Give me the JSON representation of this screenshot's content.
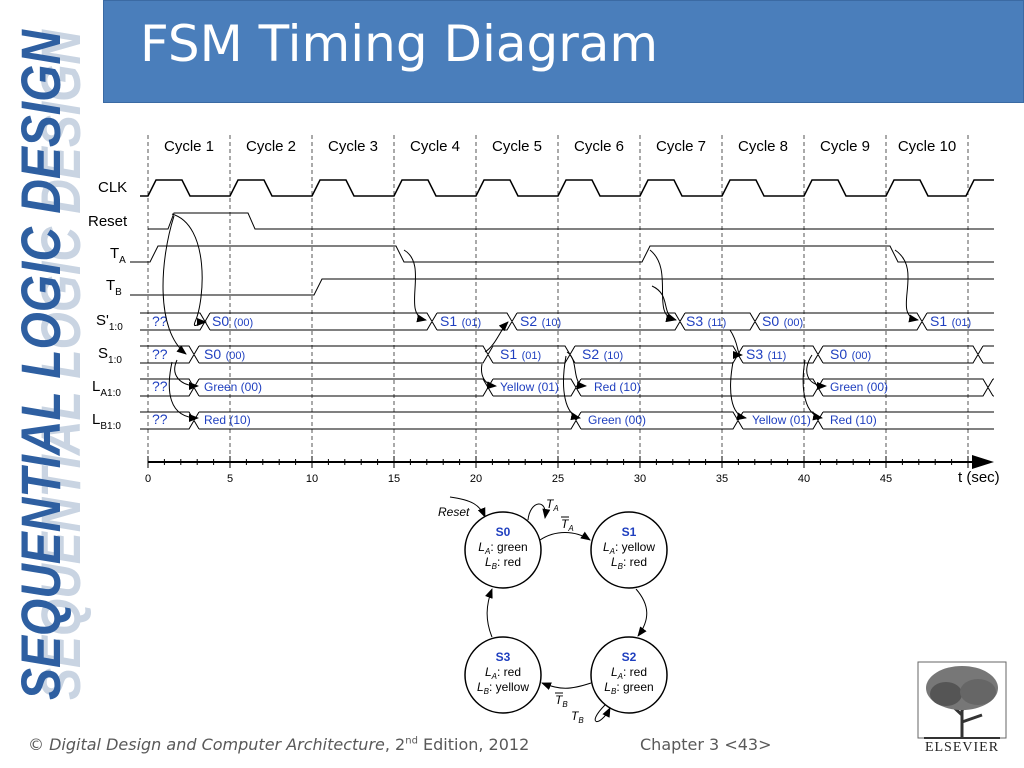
{
  "slide": {
    "title": "FSM Timing Diagram",
    "side_title": "SEQUENTIAL LOGIC DESIGN",
    "footer": {
      "copyright": "©",
      "book": "Digital Design and Computer Architecture",
      "edition_pre": ", 2",
      "edition_sup": "nd",
      "edition_post": " Edition, 2012",
      "chapter": "Chapter 3 <43>"
    },
    "publisher": "ELSEVIER",
    "colors": {
      "title_bg": "#4a7ebb",
      "side_text": "#2e5fa1",
      "blue_label": "#1f3fbf"
    }
  },
  "timing": {
    "cycles": [
      "Cycle 1",
      "Cycle 2",
      "Cycle 3",
      "Cycle 4",
      "Cycle 5",
      "Cycle 6",
      "Cycle 7",
      "Cycle 8",
      "Cycle 9",
      "Cycle 10"
    ],
    "time_ticks": [
      "0",
      "5",
      "10",
      "15",
      "20",
      "25",
      "30",
      "35",
      "40",
      "45"
    ],
    "time_axis_label": "t (sec)",
    "signals": {
      "clk": "CLK",
      "reset": "Reset",
      "ta": "T",
      "ta_sub": "A",
      "tb": "T",
      "tb_sub": "B",
      "snext": "S'",
      "snext_sub": "1:0",
      "s": "S",
      "s_sub": "1:0",
      "la": "L",
      "la_sub": "A1:0",
      "lb": "L",
      "lb_sub": "B1:0"
    },
    "bus_values": {
      "snext": [
        {
          "state": "??",
          "code": ""
        },
        {
          "state": "S0",
          "code": "(00)"
        },
        {
          "state": "S1",
          "code": "(01)"
        },
        {
          "state": "S2",
          "code": "(10)"
        },
        {
          "state": "S3",
          "code": "(11)"
        },
        {
          "state": "S0",
          "code": "(00)"
        },
        {
          "state": "S1",
          "code": "(01)"
        }
      ],
      "s": [
        {
          "state": "??",
          "code": ""
        },
        {
          "state": "S0",
          "code": "(00)"
        },
        {
          "state": "S1",
          "code": "(01)"
        },
        {
          "state": "S2",
          "code": "(10)"
        },
        {
          "state": "S3",
          "code": "(11)"
        },
        {
          "state": "S0",
          "code": "(00)"
        }
      ],
      "la": [
        "??",
        "Green (00)",
        "Yellow (01)",
        "Red (10)",
        "Green (00)"
      ],
      "lb": [
        "??",
        "Red (10)",
        "Green (00)",
        "Yellow (01)",
        "Red (10)"
      ]
    }
  },
  "state_diagram": {
    "reset_label": "Reset",
    "states": [
      {
        "name": "S0",
        "la_prefix": "L",
        "la_sub": "A",
        "la_value": ": green",
        "lb_prefix": "L",
        "lb_sub": "B",
        "lb_value": ": red"
      },
      {
        "name": "S1",
        "la_prefix": "L",
        "la_sub": "A",
        "la_value": ": yellow",
        "lb_prefix": "L",
        "lb_sub": "B",
        "lb_value": ": red"
      },
      {
        "name": "S2",
        "la_prefix": "L",
        "la_sub": "A",
        "la_value": ": red",
        "lb_prefix": "L",
        "lb_sub": "B",
        "lb_value": ": green"
      },
      {
        "name": "S3",
        "la_prefix": "L",
        "la_sub": "A",
        "la_value": ": red",
        "lb_prefix": "L",
        "lb_sub": "B",
        "lb_value": ": yellow"
      }
    ],
    "transitions": {
      "s0_self": {
        "sym": "T",
        "sub": "A"
      },
      "s0_to_s1": {
        "sym": "T",
        "sub": "A"
      },
      "s2_self": {
        "sym": "T",
        "sub": "B"
      },
      "s2_to_s3": {
        "sym": "T",
        "sub": "B"
      }
    }
  }
}
